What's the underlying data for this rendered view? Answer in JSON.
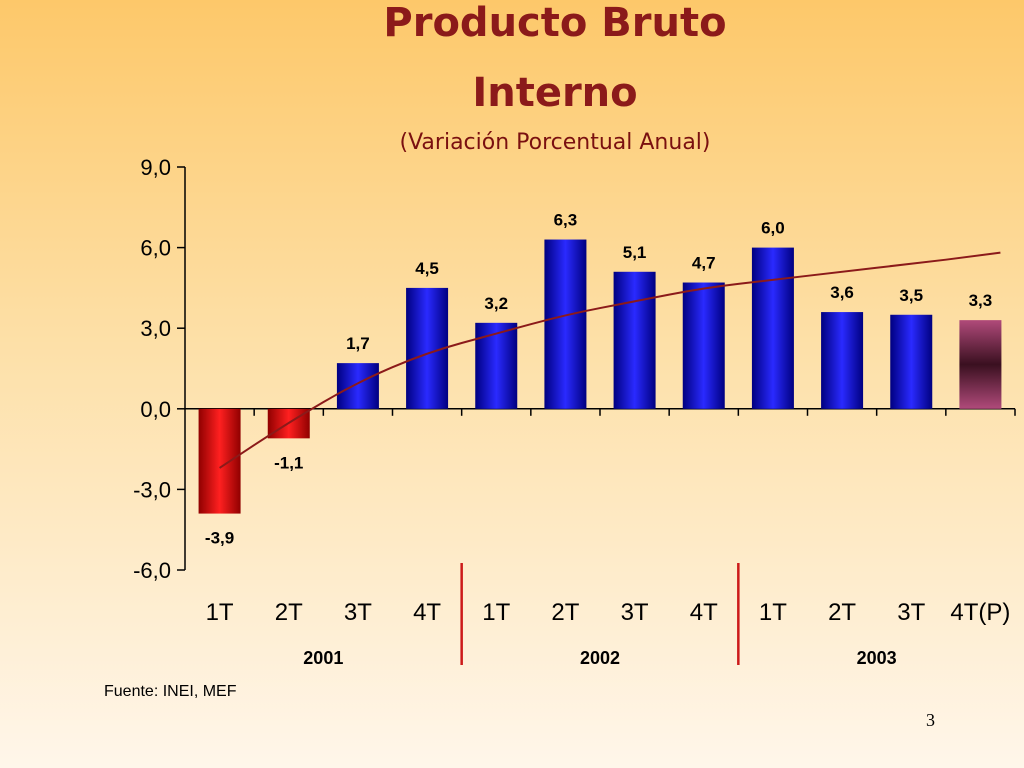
{
  "title_line1": "Producto Bruto",
  "title_line2": "Interno",
  "subtitle": "(Variación Porcentual Anual)",
  "source": "Fuente: INEI, MEF",
  "page_number": "3",
  "chart_data": {
    "type": "bar",
    "title": "Producto Bruto Interno",
    "subtitle": "(Variación Porcentual Anual)",
    "categories": [
      "1T",
      "2T",
      "3T",
      "4T",
      "1T",
      "2T",
      "3T",
      "4T",
      "1T",
      "2T",
      "3T",
      "4T(P)"
    ],
    "years": [
      {
        "label": "2001",
        "from": 0,
        "to": 3
      },
      {
        "label": "2002",
        "from": 4,
        "to": 7
      },
      {
        "label": "2003",
        "from": 8,
        "to": 11
      }
    ],
    "values": [
      -3.9,
      -1.1,
      1.7,
      4.5,
      3.2,
      6.3,
      5.1,
      4.7,
      6.0,
      3.6,
      3.5,
      3.3
    ],
    "data_labels": [
      "-3,9",
      "-1,1",
      "1,7",
      "4,5",
      "3,2",
      "6,3",
      "5,1",
      "4,7",
      "6,0",
      "3,6",
      "3,5",
      "3,3"
    ],
    "yticks": [
      "9,0",
      "6,0",
      "3,0",
      "0,0",
      "-3,0",
      "-6,0"
    ],
    "ytick_values": [
      9,
      6,
      3,
      0,
      -3,
      -6
    ],
    "ylim": [
      -6,
      9
    ],
    "trend_line": [
      -2.2,
      -0.5,
      1.0,
      2.1,
      2.8,
      3.5,
      4.0,
      4.5,
      4.8,
      5.1,
      5.4,
      5.7
    ],
    "colors": {
      "positive": "#1010d0",
      "negative": "#e01010",
      "projected": "#8a2a5a",
      "trend": "#8b1a1a",
      "separator": "#cc1a1a"
    }
  }
}
